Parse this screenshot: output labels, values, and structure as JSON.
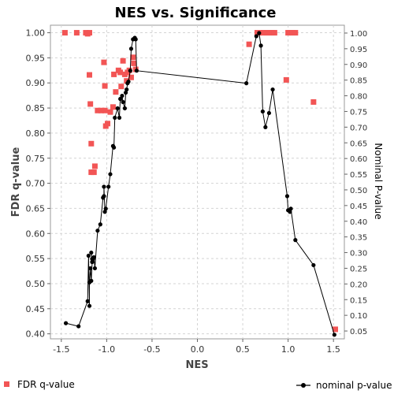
{
  "chart_data": {
    "type": "scatter",
    "title": "NES vs. Significance",
    "xlabel": "NES",
    "ylabel_left": "FDR q-value",
    "ylabel_right": "Nominal P-value",
    "xlim": [
      -1.62,
      1.62
    ],
    "ylim_left": [
      0.39,
      1.015
    ],
    "ylim_right": [
      0.025,
      1.025
    ],
    "x_ticks": [
      "-1.5",
      "-1.0",
      "-0.5",
      "0.0",
      "0.5",
      "1.0",
      "1.5"
    ],
    "x_tick_values": [
      -1.5,
      -1.0,
      -0.5,
      0.0,
      0.5,
      1.0,
      1.5
    ],
    "y_left_ticks": [
      "0.40",
      "0.45",
      "0.50",
      "0.55",
      "0.60",
      "0.65",
      "0.70",
      "0.75",
      "0.80",
      "0.85",
      "0.90",
      "0.95",
      "1.00"
    ],
    "y_left_tick_values": [
      0.4,
      0.45,
      0.5,
      0.55,
      0.6,
      0.65,
      0.7,
      0.75,
      0.8,
      0.85,
      0.9,
      0.95,
      1.0
    ],
    "y_right_ticks": [
      "0.05",
      "0.10",
      "0.15",
      "0.20",
      "0.25",
      "0.30",
      "0.35",
      "0.40",
      "0.45",
      "0.50",
      "0.55",
      "0.60",
      "0.65",
      "0.70",
      "0.75",
      "0.80",
      "0.85",
      "0.90",
      "0.95",
      "1.00"
    ],
    "y_right_tick_values": [
      0.05,
      0.1,
      0.15,
      0.2,
      0.25,
      0.3,
      0.35,
      0.4,
      0.45,
      0.5,
      0.55,
      0.6,
      0.65,
      0.7,
      0.75,
      0.8,
      0.85,
      0.9,
      0.95,
      1.0
    ],
    "grid": true,
    "legend_position": "bottom",
    "series": [
      {
        "name": "FDR q-value",
        "axis": "left",
        "mark": "square",
        "color": "#f25555",
        "points": [
          [
            -1.46,
            1.0
          ],
          [
            -1.33,
            1.0
          ],
          [
            -1.23,
            1.0
          ],
          [
            -1.21,
            0.998
          ],
          [
            -1.19,
            1.0
          ],
          [
            -1.19,
            0.916
          ],
          [
            -1.18,
            0.858
          ],
          [
            -1.17,
            0.779
          ],
          [
            -1.17,
            0.722
          ],
          [
            -1.14,
            0.722
          ],
          [
            -1.13,
            0.734
          ],
          [
            -1.1,
            0.845
          ],
          [
            -1.06,
            0.845
          ],
          [
            -1.03,
            0.941
          ],
          [
            -1.02,
            0.894
          ],
          [
            -1.02,
            0.845
          ],
          [
            -1.01,
            0.814
          ],
          [
            -0.99,
            0.819
          ],
          [
            -0.96,
            0.842
          ],
          [
            -0.93,
            0.852
          ],
          [
            -0.92,
            0.917
          ],
          [
            -0.9,
            0.882
          ],
          [
            -0.87,
            0.925
          ],
          [
            -0.85,
            0.921
          ],
          [
            -0.84,
            0.893
          ],
          [
            -0.82,
            0.944
          ],
          [
            -0.8,
            0.917
          ],
          [
            -0.78,
            0.904
          ],
          [
            -0.77,
            0.921
          ],
          [
            -0.75,
            0.925
          ],
          [
            -0.73,
            0.911
          ],
          [
            -0.71,
            0.951
          ],
          [
            -0.7,
            0.939
          ],
          [
            -0.68,
            0.927
          ],
          [
            0.57,
            0.977
          ],
          [
            0.66,
            1.0
          ],
          [
            0.69,
            1.0
          ],
          [
            0.73,
            1.0
          ],
          [
            0.76,
            1.0
          ],
          [
            0.79,
            1.0
          ],
          [
            0.82,
            1.0
          ],
          [
            0.85,
            1.0
          ],
          [
            0.98,
            0.906
          ],
          [
            1.0,
            1.0
          ],
          [
            1.02,
            1.0
          ],
          [
            1.05,
            1.0
          ],
          [
            1.08,
            1.0
          ],
          [
            1.28,
            0.862
          ],
          [
            1.52,
            0.409
          ]
        ]
      },
      {
        "name": "nominal p-value",
        "axis": "right",
        "mark": "circle-line",
        "color": "#000000",
        "points": [
          [
            -1.45,
            0.075
          ],
          [
            -1.31,
            0.065
          ],
          [
            -1.21,
            0.145
          ],
          [
            -1.2,
            0.29
          ],
          [
            -1.19,
            0.13
          ],
          [
            -1.19,
            0.205
          ],
          [
            -1.18,
            0.25
          ],
          [
            -1.17,
            0.21
          ],
          [
            -1.16,
            0.27
          ],
          [
            -1.17,
            0.3
          ],
          [
            -1.16,
            0.28
          ],
          [
            -1.15,
            0.28
          ],
          [
            -1.14,
            0.285
          ],
          [
            -1.13,
            0.25
          ],
          [
            -1.1,
            0.37
          ],
          [
            -1.07,
            0.39
          ],
          [
            -1.04,
            0.475
          ],
          [
            -1.03,
            0.48
          ],
          [
            -1.03,
            0.51
          ],
          [
            -1.02,
            0.43
          ],
          [
            -1.01,
            0.44
          ],
          [
            -0.98,
            0.51
          ],
          [
            -0.96,
            0.55
          ],
          [
            -0.93,
            0.64
          ],
          [
            -0.92,
            0.635
          ],
          [
            -0.91,
            0.73
          ],
          [
            -0.88,
            0.76
          ],
          [
            -0.86,
            0.73
          ],
          [
            -0.85,
            0.79
          ],
          [
            -0.83,
            0.8
          ],
          [
            -0.82,
            0.78
          ],
          [
            -0.8,
            0.76
          ],
          [
            -0.79,
            0.81
          ],
          [
            -0.78,
            0.82
          ],
          [
            -0.77,
            0.84
          ],
          [
            -0.76,
            0.845
          ],
          [
            -0.74,
            0.88
          ],
          [
            -0.73,
            0.95
          ],
          [
            -0.71,
            0.98
          ],
          [
            -0.69,
            0.985
          ],
          [
            -0.68,
            0.98
          ],
          [
            -0.67,
            0.88
          ],
          [
            0.54,
            0.84
          ],
          [
            0.65,
            0.99
          ],
          [
            0.68,
            1.0
          ],
          [
            0.7,
            0.96
          ],
          [
            0.72,
            0.75
          ],
          [
            0.75,
            0.7
          ],
          [
            0.79,
            0.745
          ],
          [
            0.83,
            0.82
          ],
          [
            0.99,
            0.48
          ],
          [
            1.0,
            0.435
          ],
          [
            1.02,
            0.43
          ],
          [
            1.03,
            0.44
          ],
          [
            1.08,
            0.34
          ],
          [
            1.28,
            0.26
          ],
          [
            1.51,
            0.038
          ]
        ]
      }
    ]
  }
}
